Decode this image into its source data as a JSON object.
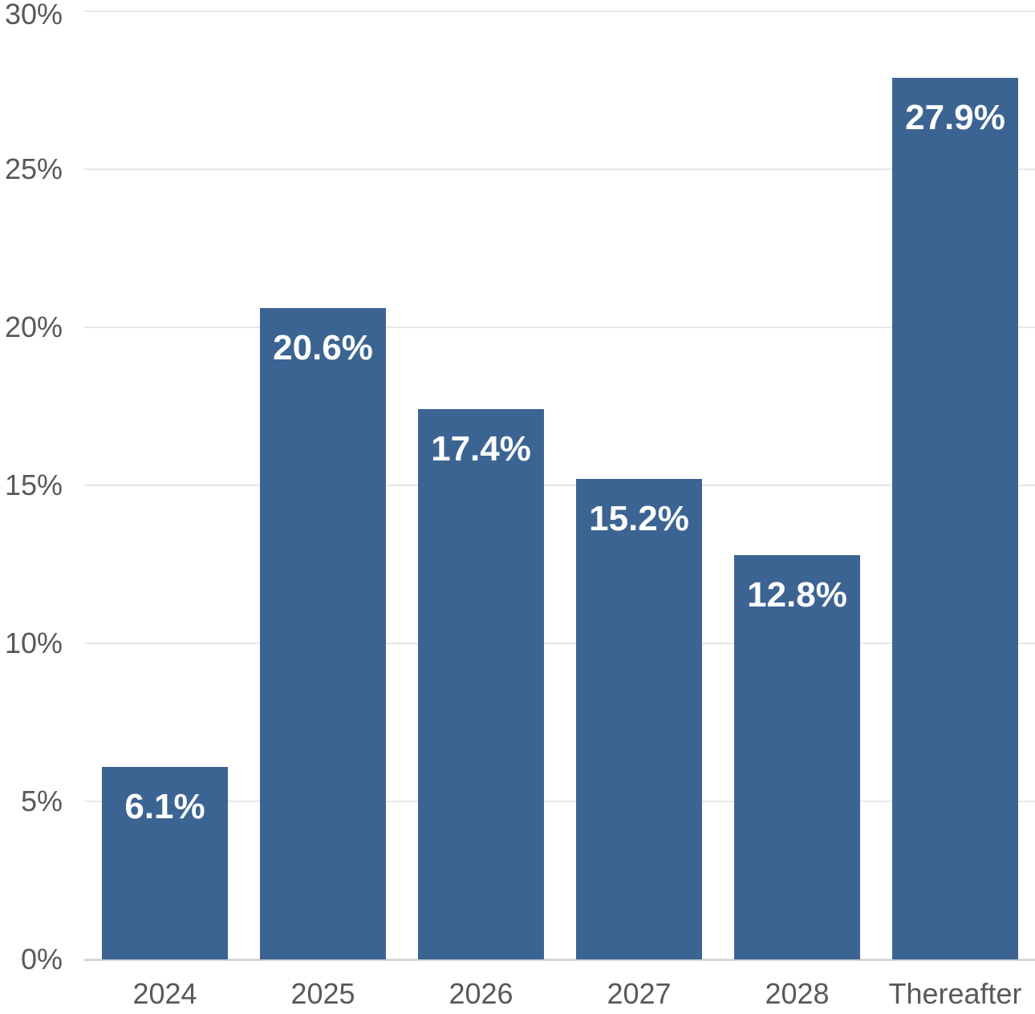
{
  "chart_data": {
    "type": "bar",
    "title": "",
    "categories": [
      "2024",
      "2025",
      "2026",
      "2027",
      "2028",
      "Thereafter"
    ],
    "values": [
      6.1,
      20.6,
      17.4,
      15.2,
      12.8,
      27.9
    ],
    "value_labels": [
      "6.1%",
      "20.6%",
      "17.4%",
      "15.2%",
      "12.8%",
      "27.9%"
    ],
    "xlabel": "",
    "ylabel": "",
    "ylim": [
      0,
      30
    ],
    "ytick_values": [
      0,
      5,
      10,
      15,
      20,
      25,
      30
    ],
    "ytick_labels": [
      "0%",
      "5%",
      "10%",
      "15%",
      "20%",
      "25%",
      "30%"
    ],
    "grid": "horizontal",
    "legend_position": "none",
    "data_label_position": "inside-top",
    "colors": {
      "bar_fill": "#3C6493",
      "data_label_text": "#FFFFFF",
      "axis_text": "#595959",
      "gridline": "#E7E7E7",
      "axis_line": "#D6D6D6",
      "background": "#FFFFFF"
    }
  }
}
